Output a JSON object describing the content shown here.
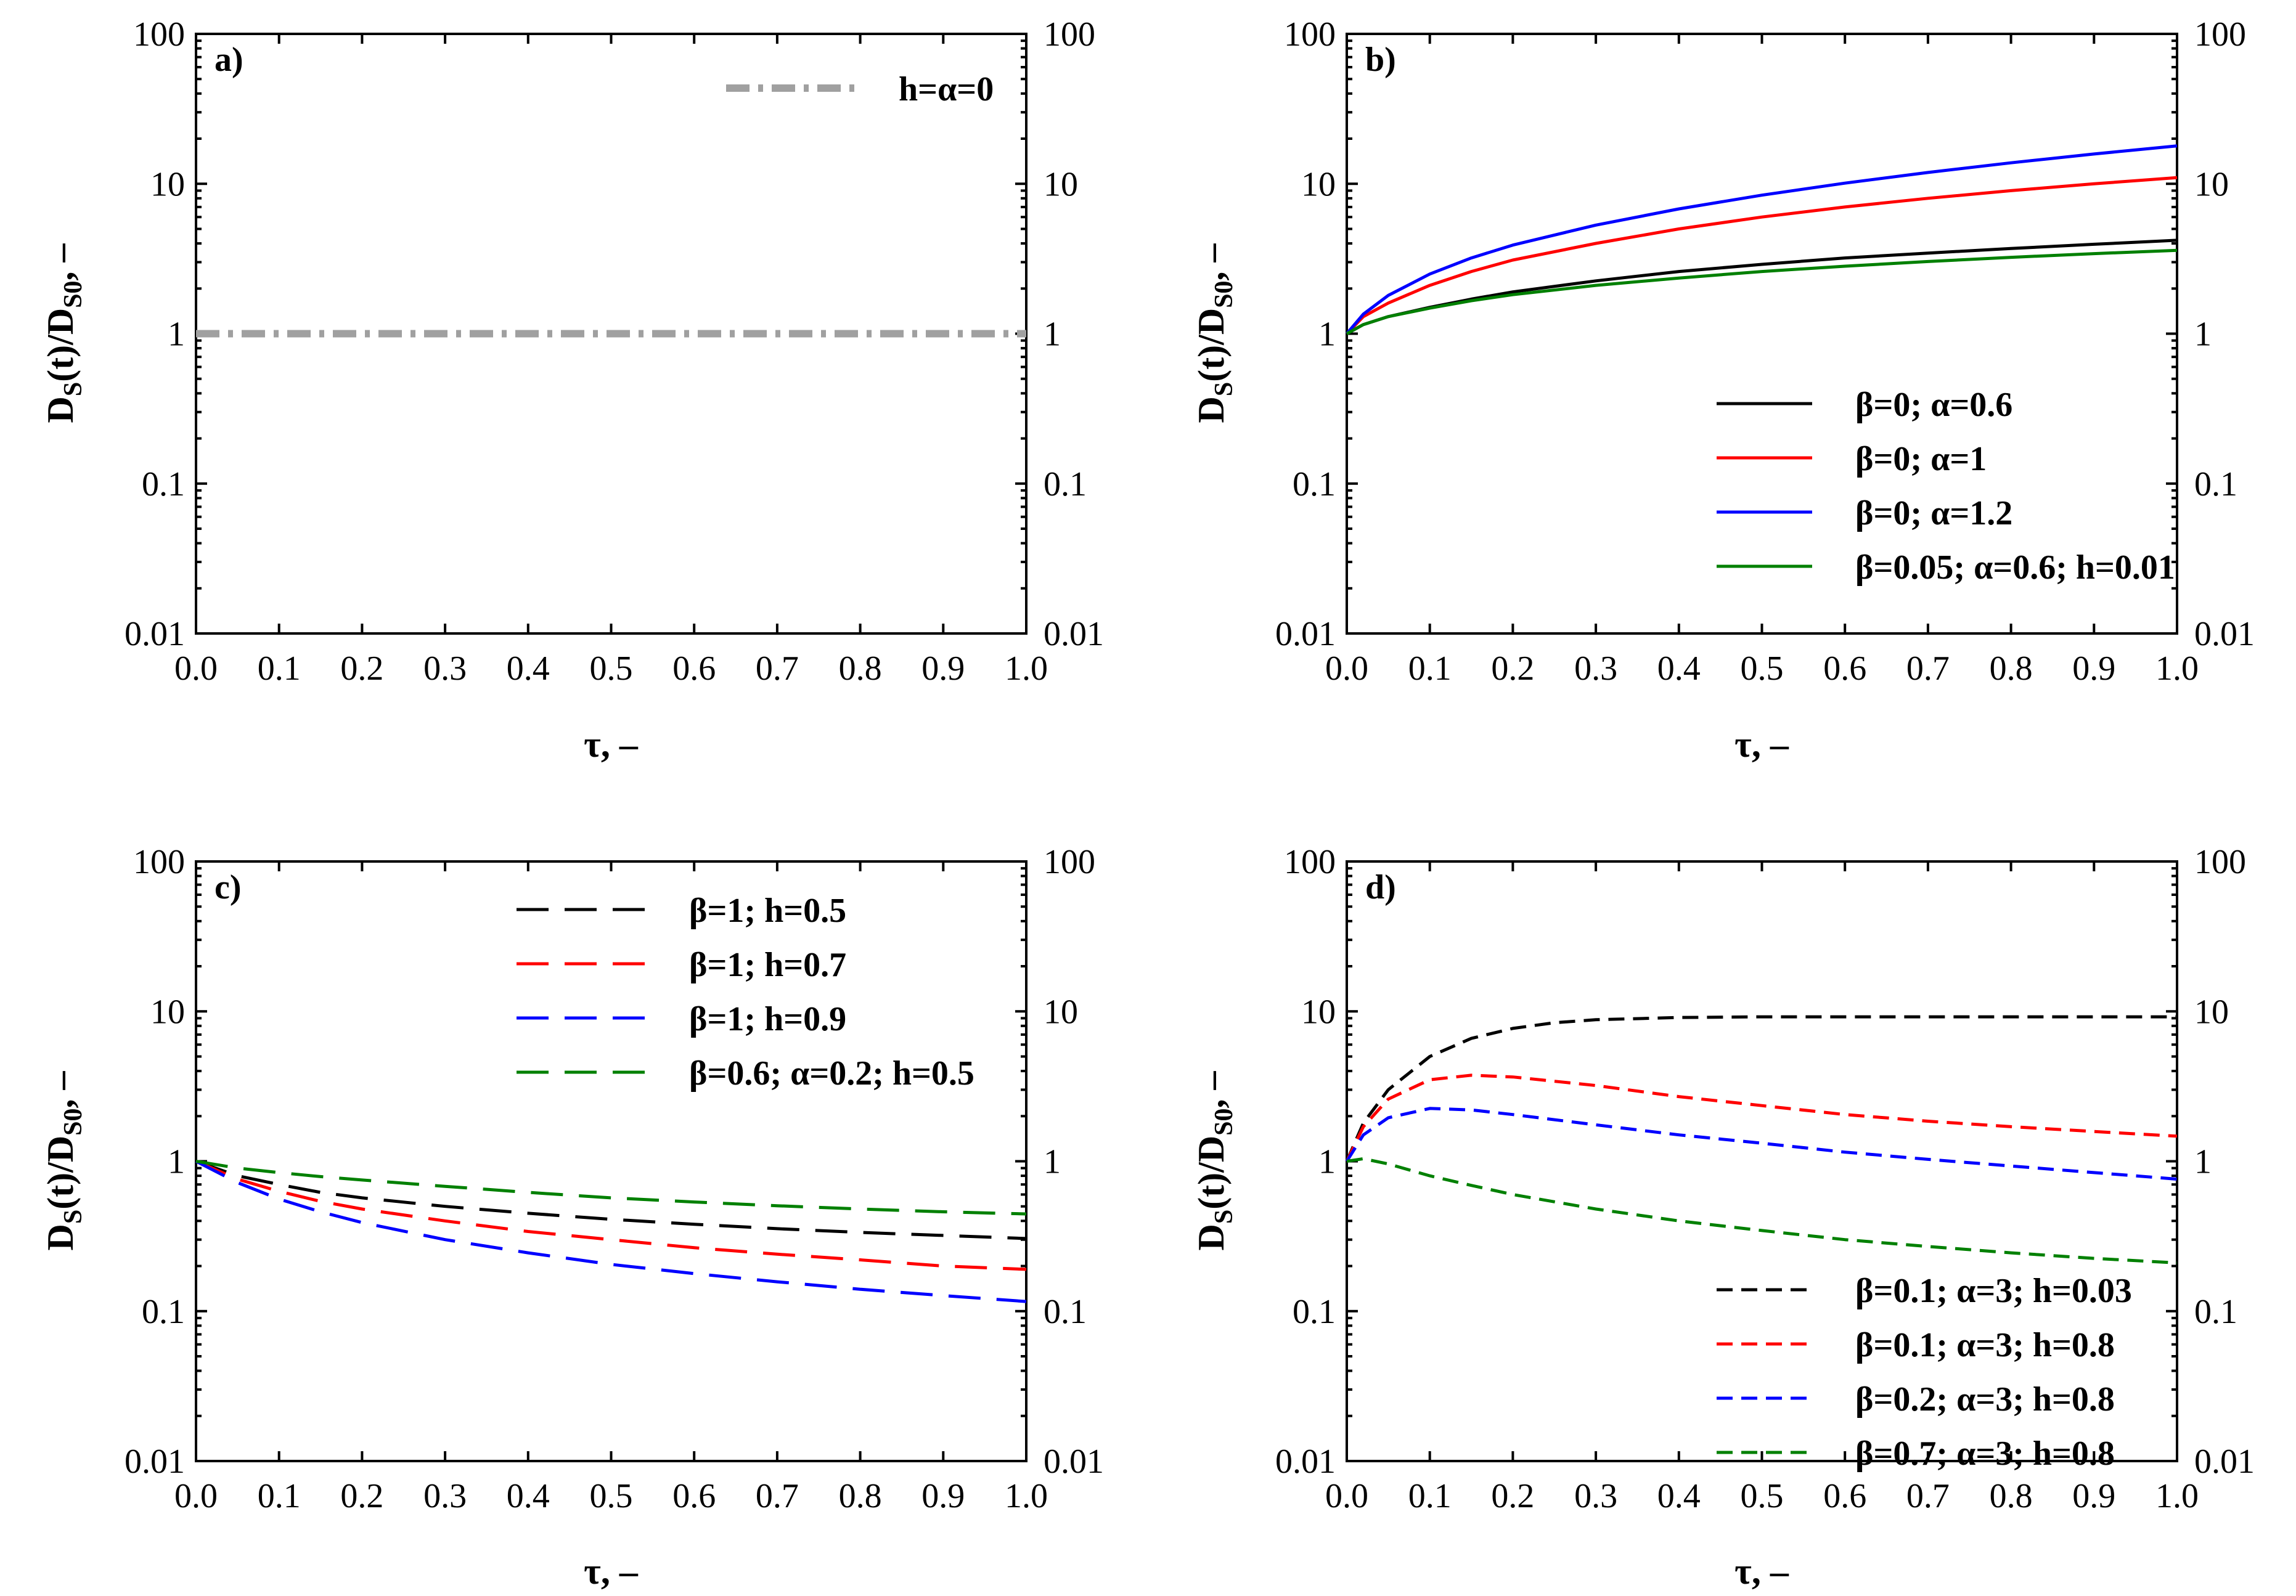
{
  "figure": {
    "panels": [
      {
        "label": "a)",
        "xlabel": "τ, –",
        "ylabel_main": "D",
        "ylabel_sub1": "S",
        "ylabel_mid": "(t)/D",
        "ylabel_sub2": "S0",
        "ylabel_end": ", –",
        "legend_position": "top-right",
        "x_tick_labels": [
          "0.0",
          "0.1",
          "0.2",
          "0.3",
          "0.4",
          "0.5",
          "0.6",
          "0.7",
          "0.8",
          "0.9",
          "1.0"
        ],
        "y_tick_labels": [
          "0.01",
          "0.1",
          "1",
          "10",
          "100"
        ]
      },
      {
        "label": "b)",
        "xlabel": "τ, –",
        "ylabel_main": "D",
        "ylabel_sub1": "S",
        "ylabel_mid": "(t)/D",
        "ylabel_sub2": "S0",
        "ylabel_end": ", –",
        "legend_position": "bottom-right",
        "x_tick_labels": [
          "0.0",
          "0.1",
          "0.2",
          "0.3",
          "0.4",
          "0.5",
          "0.6",
          "0.7",
          "0.8",
          "0.9",
          "1.0"
        ],
        "y_tick_labels": [
          "0.01",
          "0.1",
          "1",
          "10",
          "100"
        ]
      },
      {
        "label": "c)",
        "xlabel": "τ, –",
        "ylabel_main": "D",
        "ylabel_sub1": "S",
        "ylabel_mid": "(t)/D",
        "ylabel_sub2": "S0",
        "ylabel_end": ", –",
        "legend_position": "top-right",
        "x_tick_labels": [
          "0.0",
          "0.1",
          "0.2",
          "0.3",
          "0.4",
          "0.5",
          "0.6",
          "0.7",
          "0.8",
          "0.9",
          "1.0"
        ],
        "y_tick_labels": [
          "0.01",
          "0.1",
          "1",
          "10",
          "100"
        ]
      },
      {
        "label": "d)",
        "xlabel": "τ, –",
        "ylabel_main": "D",
        "ylabel_sub1": "S",
        "ylabel_mid": "(t)/D",
        "ylabel_sub2": "S0",
        "ylabel_end": ", –",
        "legend_position": "bottom-right",
        "x_tick_labels": [
          "0.0",
          "0.1",
          "0.2",
          "0.3",
          "0.4",
          "0.5",
          "0.6",
          "0.7",
          "0.8",
          "0.9",
          "1.0"
        ],
        "y_tick_labels": [
          "0.01",
          "0.1",
          "1",
          "10",
          "100"
        ]
      }
    ]
  },
  "chart_data": [
    {
      "type": "line",
      "panel": "a)",
      "xlabel": "τ, –",
      "ylabel": "DS(t)/DS0, –",
      "xlim": [
        0,
        1
      ],
      "ylim": [
        0.01,
        100
      ],
      "yscale": "log",
      "grid": false,
      "series": [
        {
          "name": "h=α=0",
          "color": "#a0a0a0",
          "dash": "dashdot",
          "x": [
            0,
            0.1,
            0.2,
            0.3,
            0.4,
            0.5,
            0.6,
            0.7,
            0.8,
            0.9,
            1.0
          ],
          "y": [
            1,
            1,
            1,
            1,
            1,
            1,
            1,
            1,
            1,
            1,
            1
          ]
        }
      ]
    },
    {
      "type": "line",
      "panel": "b)",
      "xlabel": "τ, –",
      "ylabel": "DS(t)/DS0, –",
      "xlim": [
        0,
        1
      ],
      "ylim": [
        0.01,
        100
      ],
      "yscale": "log",
      "grid": false,
      "series": [
        {
          "name": "β=0; α=0.6",
          "color": "#000000",
          "dash": "solid",
          "x": [
            0,
            0.02,
            0.05,
            0.1,
            0.15,
            0.2,
            0.3,
            0.4,
            0.5,
            0.6,
            0.7,
            0.8,
            0.9,
            1.0
          ],
          "y": [
            1.0,
            1.15,
            1.3,
            1.5,
            1.7,
            1.9,
            2.25,
            2.6,
            2.9,
            3.2,
            3.45,
            3.7,
            3.95,
            4.2
          ]
        },
        {
          "name": "β=0; α=1",
          "color": "#ff0000",
          "dash": "solid",
          "x": [
            0,
            0.02,
            0.05,
            0.1,
            0.15,
            0.2,
            0.3,
            0.4,
            0.5,
            0.6,
            0.7,
            0.8,
            0.9,
            1.0
          ],
          "y": [
            1.0,
            1.3,
            1.6,
            2.1,
            2.6,
            3.1,
            4.0,
            5.0,
            6.0,
            7.0,
            8.0,
            9.0,
            10.0,
            11.0
          ]
        },
        {
          "name": "β=0; α=1.2",
          "color": "#0000ff",
          "dash": "solid",
          "x": [
            0,
            0.02,
            0.05,
            0.1,
            0.15,
            0.2,
            0.3,
            0.4,
            0.5,
            0.6,
            0.7,
            0.8,
            0.9,
            1.0
          ],
          "y": [
            1.0,
            1.35,
            1.8,
            2.5,
            3.2,
            3.9,
            5.3,
            6.8,
            8.4,
            10.1,
            11.9,
            13.8,
            15.8,
            17.9
          ]
        },
        {
          "name": "β=0.05; α=0.6; h=0.01",
          "color": "#008000",
          "dash": "solid",
          "x": [
            0,
            0.02,
            0.05,
            0.1,
            0.15,
            0.2,
            0.3,
            0.4,
            0.5,
            0.6,
            0.7,
            0.8,
            0.9,
            1.0
          ],
          "y": [
            1.0,
            1.15,
            1.3,
            1.48,
            1.66,
            1.82,
            2.1,
            2.35,
            2.6,
            2.82,
            3.03,
            3.23,
            3.42,
            3.6
          ]
        }
      ]
    },
    {
      "type": "line",
      "panel": "c)",
      "xlabel": "τ, –",
      "ylabel": "DS(t)/DS0, –",
      "xlim": [
        0,
        1
      ],
      "ylim": [
        0.01,
        100
      ],
      "yscale": "log",
      "grid": false,
      "series": [
        {
          "name": "β=1; h=0.5",
          "color": "#000000",
          "dash": "long-dash",
          "x": [
            0,
            0.05,
            0.1,
            0.15,
            0.2,
            0.3,
            0.4,
            0.5,
            0.6,
            0.7,
            0.8,
            0.9,
            1.0
          ],
          "y": [
            1.0,
            0.8,
            0.7,
            0.62,
            0.57,
            0.5,
            0.45,
            0.41,
            0.38,
            0.355,
            0.335,
            0.32,
            0.305
          ]
        },
        {
          "name": "β=1; h=0.7",
          "color": "#ff0000",
          "dash": "long-dash",
          "x": [
            0,
            0.05,
            0.1,
            0.15,
            0.2,
            0.3,
            0.4,
            0.5,
            0.6,
            0.7,
            0.8,
            0.9,
            1.0
          ],
          "y": [
            1.0,
            0.76,
            0.63,
            0.54,
            0.48,
            0.4,
            0.34,
            0.3,
            0.265,
            0.24,
            0.22,
            0.2,
            0.19
          ]
        },
        {
          "name": "β=1; h=0.9",
          "color": "#0000ff",
          "dash": "long-dash",
          "x": [
            0,
            0.05,
            0.1,
            0.15,
            0.2,
            0.3,
            0.4,
            0.5,
            0.6,
            0.7,
            0.8,
            0.9,
            1.0
          ],
          "y": [
            1.0,
            0.72,
            0.56,
            0.46,
            0.39,
            0.3,
            0.245,
            0.205,
            0.178,
            0.157,
            0.14,
            0.127,
            0.116
          ]
        },
        {
          "name": "β=0.6; α=0.2; h=0.5",
          "color": "#008000",
          "dash": "long-dash",
          "x": [
            0,
            0.05,
            0.1,
            0.15,
            0.2,
            0.3,
            0.4,
            0.5,
            0.6,
            0.7,
            0.8,
            0.9,
            1.0
          ],
          "y": [
            1.0,
            0.9,
            0.84,
            0.79,
            0.75,
            0.68,
            0.62,
            0.57,
            0.535,
            0.505,
            0.48,
            0.46,
            0.445
          ]
        }
      ]
    },
    {
      "type": "line",
      "panel": "d)",
      "xlabel": "τ, –",
      "ylabel": "DS(t)/DS0, –",
      "xlim": [
        0,
        1
      ],
      "ylim": [
        0.01,
        100
      ],
      "yscale": "log",
      "grid": false,
      "series": [
        {
          "name": "β=0.1; α=3; h=0.03",
          "color": "#000000",
          "dash": "short-dash",
          "x": [
            0,
            0.02,
            0.05,
            0.1,
            0.15,
            0.2,
            0.25,
            0.3,
            0.4,
            0.5,
            0.6,
            0.7,
            0.8,
            0.9,
            1.0
          ],
          "y": [
            1.0,
            1.8,
            3.0,
            5.0,
            6.6,
            7.7,
            8.4,
            8.8,
            9.1,
            9.2,
            9.2,
            9.2,
            9.2,
            9.2,
            9.2
          ]
        },
        {
          "name": "β=0.1; α=3; h=0.8",
          "color": "#ff0000",
          "dash": "short-dash",
          "x": [
            0,
            0.02,
            0.05,
            0.1,
            0.15,
            0.2,
            0.3,
            0.4,
            0.5,
            0.6,
            0.7,
            0.8,
            0.9,
            1.0
          ],
          "y": [
            1.0,
            1.7,
            2.6,
            3.5,
            3.75,
            3.65,
            3.2,
            2.7,
            2.35,
            2.05,
            1.85,
            1.7,
            1.58,
            1.47
          ]
        },
        {
          "name": "β=0.2; α=3; h=0.8",
          "color": "#0000ff",
          "dash": "short-dash",
          "x": [
            0,
            0.02,
            0.05,
            0.1,
            0.15,
            0.2,
            0.3,
            0.4,
            0.5,
            0.6,
            0.7,
            0.8,
            0.9,
            1.0
          ],
          "y": [
            1.0,
            1.5,
            1.95,
            2.25,
            2.2,
            2.05,
            1.75,
            1.5,
            1.32,
            1.15,
            1.03,
            0.93,
            0.84,
            0.76
          ]
        },
        {
          "name": "β=0.7; α=3; h=0.8",
          "color": "#008000",
          "dash": "short-dash",
          "x": [
            0,
            0.02,
            0.05,
            0.1,
            0.15,
            0.2,
            0.3,
            0.4,
            0.5,
            0.6,
            0.7,
            0.8,
            0.9,
            1.0
          ],
          "y": [
            1.0,
            1.04,
            0.96,
            0.8,
            0.69,
            0.6,
            0.48,
            0.4,
            0.345,
            0.3,
            0.27,
            0.245,
            0.225,
            0.21
          ]
        }
      ]
    }
  ]
}
